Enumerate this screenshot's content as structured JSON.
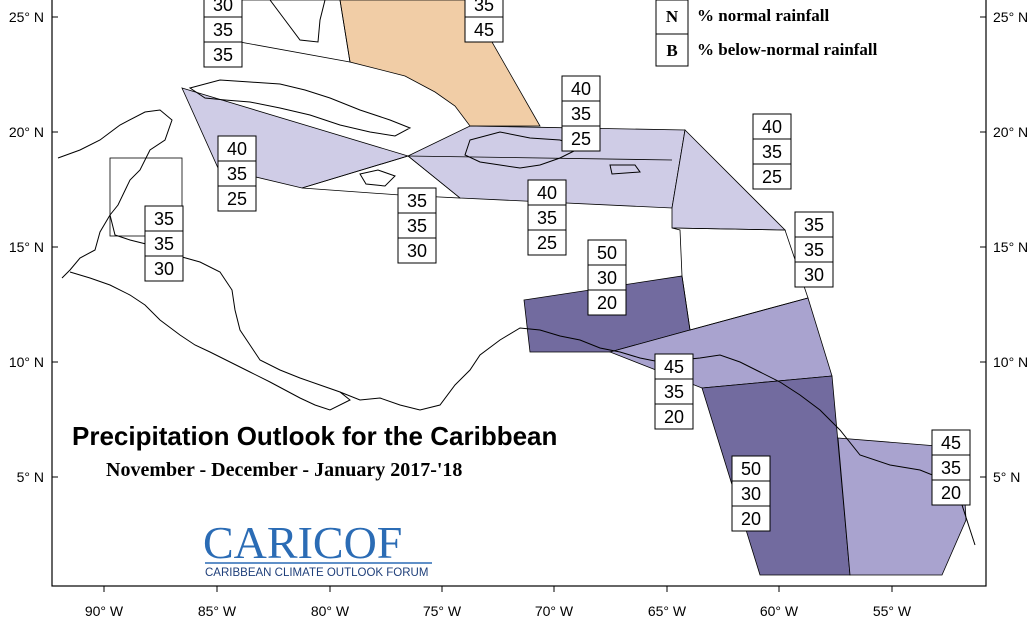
{
  "title": "Precipitation Outlook for the Caribbean",
  "subtitle": "November - December - January 2017-'18",
  "logo": {
    "main_a": "CARI",
    "main_b": "COF",
    "sub": "CARIBBEAN CLIMATE OUTLOOK FORUM"
  },
  "legend": [
    {
      "key": "N",
      "text": "% normal rainfall"
    },
    {
      "key": "B",
      "text": "% below-normal rainfall"
    }
  ],
  "lat_labels": [
    "25° N",
    "20° N",
    "15° N",
    "10° N",
    "5° N"
  ],
  "lon_labels": [
    "90° W",
    "85° W",
    "80° W",
    "75° W",
    "70° W",
    "65° W",
    "60° W",
    "55° W"
  ],
  "colors": {
    "above_light": "#cfcce6",
    "above_mid": "#a9a3cf",
    "above_dark": "#726b9f",
    "below": "#f1cda6",
    "frame": "#000000"
  },
  "forecast_boxes": [
    {
      "id": "bahamas-left",
      "values": [
        "30",
        "35",
        "35"
      ]
    },
    {
      "id": "bahamas-right",
      "values": [
        "35",
        "45"
      ]
    },
    {
      "id": "cuba-west",
      "values": [
        "40",
        "35",
        "25"
      ]
    },
    {
      "id": "jamaica-south",
      "values": [
        "35",
        "35",
        "30"
      ]
    },
    {
      "id": "hispaniola-south",
      "values": [
        "40",
        "35",
        "25"
      ]
    },
    {
      "id": "hispaniola-north",
      "values": [
        "40",
        "35",
        "25"
      ]
    },
    {
      "id": "leeward",
      "values": [
        "40",
        "35",
        "25"
      ]
    },
    {
      "id": "windward",
      "values": [
        "35",
        "35",
        "30"
      ]
    },
    {
      "id": "belize",
      "values": [
        "35",
        "35",
        "30"
      ]
    },
    {
      "id": "abc-islands",
      "values": [
        "50",
        "30",
        "20"
      ]
    },
    {
      "id": "trinidad",
      "values": [
        "45",
        "35",
        "20"
      ]
    },
    {
      "id": "guyana",
      "values": [
        "50",
        "30",
        "20"
      ]
    },
    {
      "id": "suriname",
      "values": [
        "45",
        "35",
        "20"
      ]
    }
  ]
}
